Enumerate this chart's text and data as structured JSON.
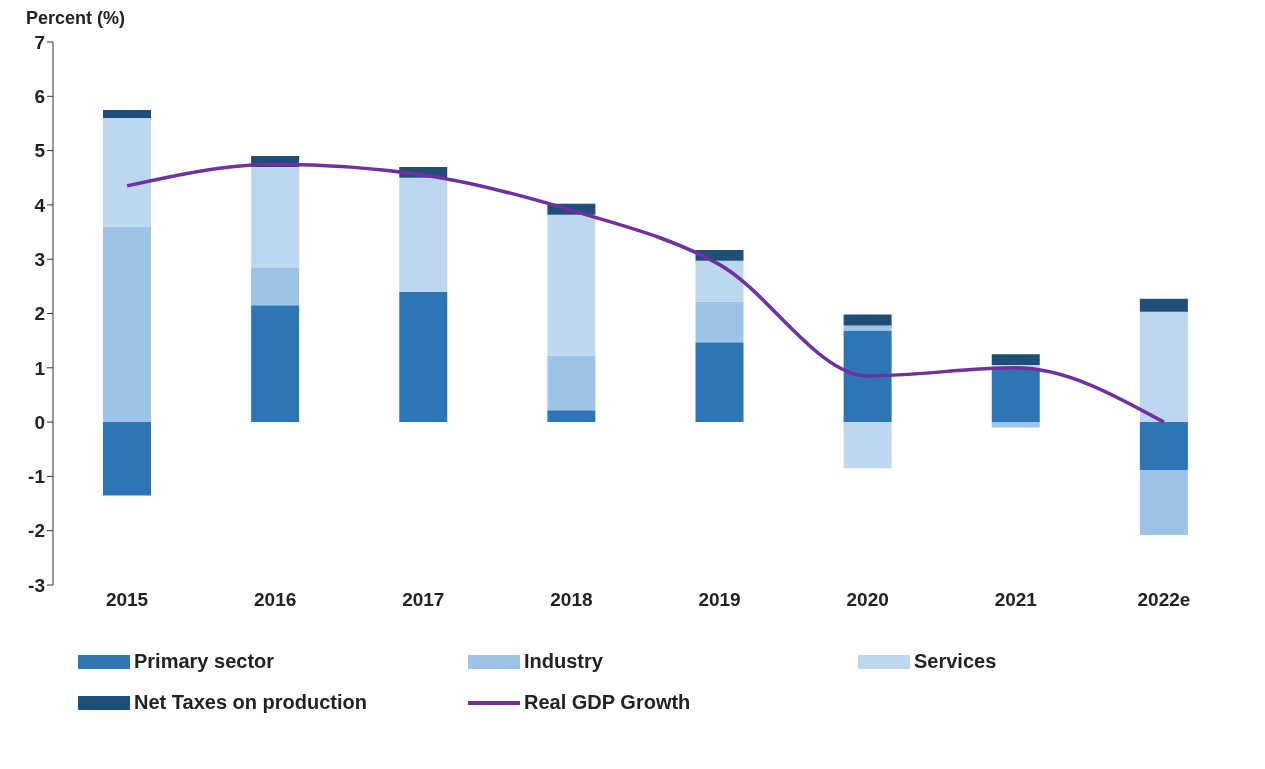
{
  "chart_data": {
    "type": "bar",
    "stacked": true,
    "ylabel": "Percent (%)",
    "categories": [
      "2015",
      "2016",
      "2017",
      "2018",
      "2019",
      "2020",
      "2021",
      "2022e"
    ],
    "series": [
      {
        "name": "Primary sector",
        "color": "#2e75b6",
        "values": [
          -1.35,
          2.15,
          2.4,
          0.22,
          1.47,
          1.68,
          1.0,
          -0.88
        ]
      },
      {
        "name": "Industry",
        "color": "#9dc3e6",
        "values": [
          3.6,
          0.7,
          0,
          1.0,
          0.75,
          0.1,
          -0.1,
          -1.2
        ]
      },
      {
        "name": "Services",
        "color": "#bdd7ee",
        "values": [
          2.0,
          1.85,
          2.1,
          2.6,
          0.75,
          -0.85,
          0.05,
          2.03
        ]
      },
      {
        "name": "Net Taxes on production",
        "color": "#1f4e79",
        "values": [
          0.15,
          0.2,
          0.2,
          0.2,
          0.2,
          0.2,
          0.2,
          0.24
        ]
      },
      {
        "name": "Real GDP Growth",
        "type": "line",
        "color": "#7030a0",
        "values": [
          4.35,
          4.75,
          4.55,
          3.9,
          2.9,
          0.85,
          1.0,
          0.0
        ]
      }
    ],
    "ylim": [
      -3,
      7
    ],
    "yticks": [
      -3,
      -2,
      -1,
      0,
      1,
      2,
      3,
      4,
      5,
      6,
      7
    ],
    "grid": false,
    "legend": "bottom"
  }
}
